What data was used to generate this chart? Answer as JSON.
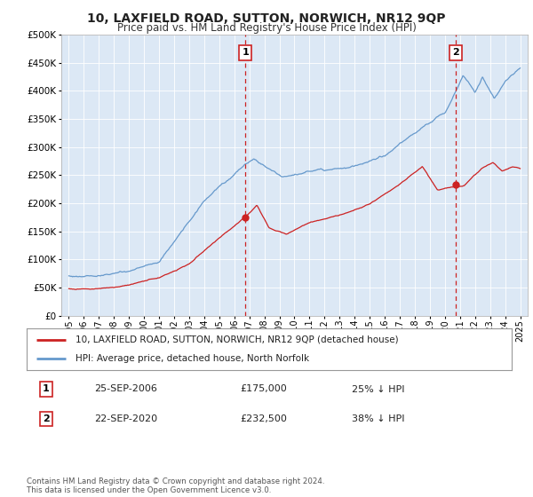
{
  "title": "10, LAXFIELD ROAD, SUTTON, NORWICH, NR12 9QP",
  "subtitle": "Price paid vs. HM Land Registry's House Price Index (HPI)",
  "bg_color": "#ffffff",
  "plot_bg_color": "#dce8f5",
  "hpi_color": "#6699cc",
  "price_color": "#cc2222",
  "vline_color": "#cc2222",
  "marker1_x": 2006.73,
  "marker2_x": 2020.73,
  "marker1_price": 175000,
  "marker2_price": 232500,
  "ylim": [
    0,
    500000
  ],
  "yticks": [
    0,
    50000,
    100000,
    150000,
    200000,
    250000,
    300000,
    350000,
    400000,
    450000,
    500000
  ],
  "xlim_min": 1994.5,
  "xlim_max": 2025.5,
  "legend_label_red": "10, LAXFIELD ROAD, SUTTON, NORWICH, NR12 9QP (detached house)",
  "legend_label_blue": "HPI: Average price, detached house, North Norfolk",
  "table_row1_num": "1",
  "table_row1_date": "25-SEP-2006",
  "table_row1_price": "£175,000",
  "table_row1_hpi": "25% ↓ HPI",
  "table_row2_num": "2",
  "table_row2_date": "22-SEP-2020",
  "table_row2_price": "£232,500",
  "table_row2_hpi": "38% ↓ HPI",
  "footnote": "Contains HM Land Registry data © Crown copyright and database right 2024.\nThis data is licensed under the Open Government Licence v3.0."
}
